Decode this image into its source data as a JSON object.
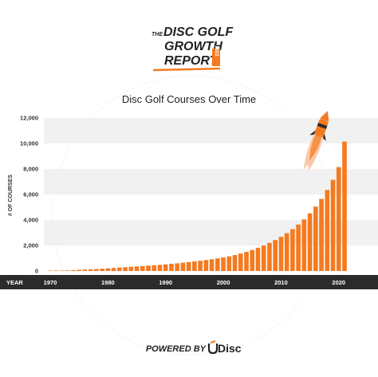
{
  "report_logo": {
    "the_label": "THE",
    "line1": "DISC GOLF",
    "line2": "GROWTH",
    "line3": "REPORT",
    "year_badge": "2022"
  },
  "footer": {
    "powered_by": "POWERED BY",
    "brand": "Disc",
    "brand_icon": "udisc-logo-icon"
  },
  "chart_data": {
    "type": "bar",
    "title": "Disc Golf Courses Over Time",
    "ylabel": "# OF COURSES",
    "xlabel": "YEAR",
    "ylim": [
      0,
      12500
    ],
    "yticks": [
      0,
      2000,
      4000,
      6000,
      8000,
      10000,
      12000
    ],
    "ytick_labels": [
      "0",
      "2,000",
      "4,000",
      "6,000",
      "8,000",
      "10,000",
      "12,000"
    ],
    "xticks": [
      1970,
      1980,
      1990,
      2000,
      2010,
      2020
    ],
    "bar_color": "#f47a20",
    "grid": "alternating horizontal bands",
    "annotation": "rocket-icon",
    "x": [
      1970,
      1971,
      1972,
      1973,
      1974,
      1975,
      1976,
      1977,
      1978,
      1979,
      1980,
      1981,
      1982,
      1983,
      1984,
      1985,
      1986,
      1987,
      1988,
      1989,
      1990,
      1991,
      1992,
      1993,
      1994,
      1995,
      1996,
      1997,
      1998,
      1999,
      2000,
      2001,
      2002,
      2003,
      2004,
      2005,
      2006,
      2007,
      2008,
      2009,
      2010,
      2011,
      2012,
      2013,
      2014,
      2015,
      2016,
      2017,
      2018,
      2019,
      2020,
      2021
    ],
    "values": [
      10,
      20,
      35,
      50,
      70,
      95,
      115,
      135,
      155,
      180,
      210,
      240,
      270,
      300,
      330,
      360,
      390,
      420,
      450,
      480,
      520,
      560,
      600,
      650,
      700,
      750,
      800,
      860,
      920,
      990,
      1060,
      1150,
      1250,
      1370,
      1500,
      1650,
      1820,
      2000,
      2200,
      2420,
      2680,
      2960,
      3280,
      3640,
      4050,
      4520,
      5050,
      5650,
      6350,
      7150,
      8150,
      10150
    ]
  },
  "colors": {
    "accent": "#f47a20",
    "year_band": "#2b2b2b",
    "grid_band": "#f1f1f1"
  }
}
